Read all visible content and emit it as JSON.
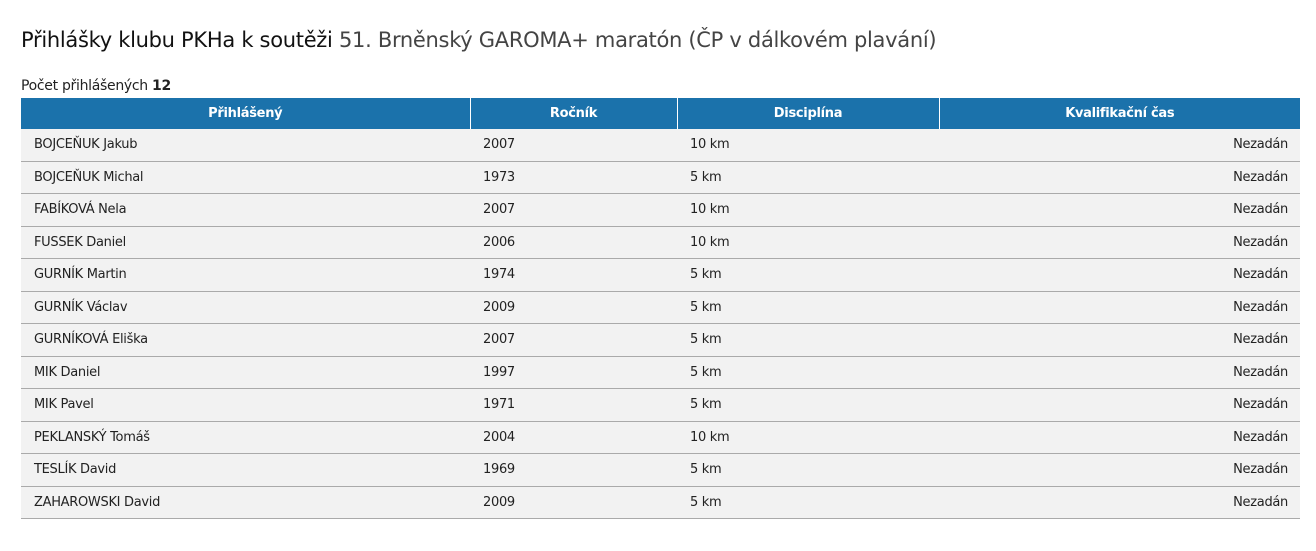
{
  "title": {
    "prefix": "Přihlášky klubu PKHa k soutěži",
    "competition": "51. Brněnský GAROMA+ maratón (ČP v dálkovém plavání)"
  },
  "count": {
    "label": "Počet přihlášených",
    "value": "12"
  },
  "table": {
    "headers": [
      "Přihlášený",
      "Ročník",
      "Disciplína",
      "Kvalifikační čas"
    ],
    "rows": [
      [
        "BOJCEŇUK Jakub",
        "2007",
        "10 km",
        "Nezadán"
      ],
      [
        "BOJCEŇUK Michal",
        "1973",
        "5 km",
        "Nezadán"
      ],
      [
        "FABÍKOVÁ Nela",
        "2007",
        "10 km",
        "Nezadán"
      ],
      [
        "FUSSEK Daniel",
        "2006",
        "10 km",
        "Nezadán"
      ],
      [
        "GURNÍK Martin",
        "1974",
        "5 km",
        "Nezadán"
      ],
      [
        "GURNÍK Václav",
        "2009",
        "5 km",
        "Nezadán"
      ],
      [
        "GURNÍKOVÁ Eliška",
        "2007",
        "5 km",
        "Nezadán"
      ],
      [
        "MIK Daniel",
        "1997",
        "5 km",
        "Nezadán"
      ],
      [
        "MIK Pavel",
        "1971",
        "5 km",
        "Nezadán"
      ],
      [
        "PEKLANSKÝ Tomáš",
        "2004",
        "10 km",
        "Nezadán"
      ],
      [
        "TESLÍK David",
        "1969",
        "5 km",
        "Nezadán"
      ],
      [
        "ZAHAROWSKI David",
        "2009",
        "5 km",
        "Nezadán"
      ]
    ]
  }
}
